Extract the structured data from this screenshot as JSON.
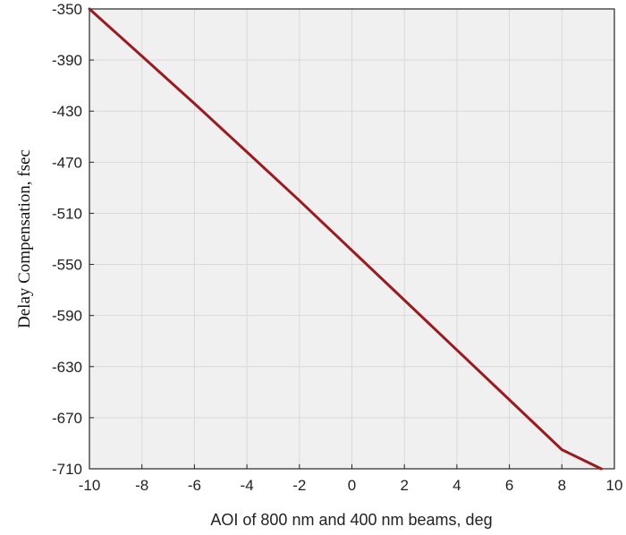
{
  "chart_data": {
    "type": "line",
    "title": "",
    "xlabel": "AOI of 800 nm and 400 nm beams, deg",
    "ylabel": "Delay Compensation, fsec",
    "xlim": [
      -10,
      10
    ],
    "ylim": [
      -710,
      -350
    ],
    "x_ticks": [
      "-10",
      "-8",
      "-6",
      "-4",
      "-2",
      "0",
      "2",
      "4",
      "6",
      "8",
      "10"
    ],
    "y_ticks": [
      "-350",
      "-390",
      "-430",
      "-470",
      "-510",
      "-550",
      "-590",
      "-630",
      "-670",
      "-710"
    ],
    "grid": true,
    "series": [
      {
        "x": [
          -10,
          -8,
          -6,
          -4,
          -2,
          0,
          2,
          4,
          6,
          8,
          9.5
        ],
        "y": [
          -350,
          -387,
          -424,
          -462,
          -500,
          -539,
          -578,
          -617,
          -656,
          -695,
          -710
        ],
        "color": "#9b1a1e"
      }
    ]
  },
  "colors": {
    "plot_background": "#f0f0f0",
    "grid": "#d9d9d9",
    "axis": "#262626"
  }
}
